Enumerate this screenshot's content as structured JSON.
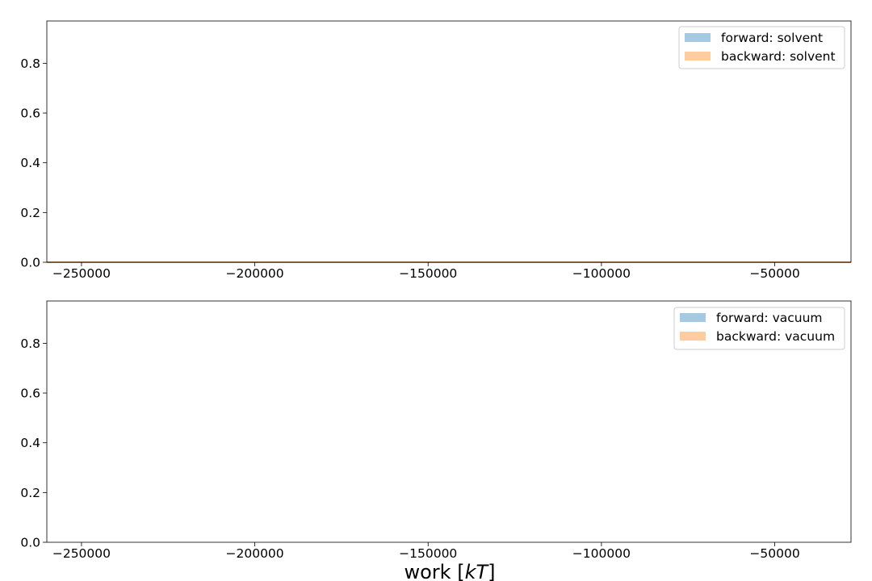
{
  "chart_data": [
    {
      "type": "area",
      "xlim": [
        -260000,
        -28000
      ],
      "ylim": [
        0,
        0.97
      ],
      "x_ticks": [
        -250000,
        -200000,
        -150000,
        -100000,
        -50000
      ],
      "x_tick_labels": [
        "−250000",
        "−200000",
        "−150000",
        "−100000",
        "−50000"
      ],
      "y_ticks": [
        0.0,
        0.2,
        0.4,
        0.6,
        0.8
      ],
      "y_tick_labels": [
        "0.0",
        "0.2",
        "0.4",
        "0.6",
        "0.8"
      ],
      "xlabel": "",
      "ylabel": "",
      "grid": false,
      "legend_position": "top-right",
      "series": [
        {
          "name": "forward: solvent",
          "color": "#1f77b4",
          "x": [
            -260000,
            -28000
          ],
          "y": [
            0,
            0
          ]
        },
        {
          "name": "backward: solvent",
          "color": "#ff7f0e",
          "x": [
            -260000,
            -28000
          ],
          "y": [
            0,
            0
          ]
        }
      ]
    },
    {
      "type": "area",
      "xlim": [
        -260000,
        -28000
      ],
      "ylim": [
        0,
        0.97
      ],
      "x_ticks": [
        -250000,
        -200000,
        -150000,
        -100000,
        -50000
      ],
      "x_tick_labels": [
        "−250000",
        "−200000",
        "−150000",
        "−100000",
        "−50000"
      ],
      "y_ticks": [
        0.0,
        0.2,
        0.4,
        0.6,
        0.8
      ],
      "y_tick_labels": [
        "0.0",
        "0.2",
        "0.4",
        "0.6",
        "0.8"
      ],
      "xlabel": "work [kT]",
      "ylabel": "",
      "grid": false,
      "legend_position": "top-right",
      "series": [
        {
          "name": "forward: vacuum",
          "color": "#1f77b4"
        },
        {
          "name": "backward: vacuum",
          "color": "#ff7f0e"
        }
      ]
    }
  ]
}
